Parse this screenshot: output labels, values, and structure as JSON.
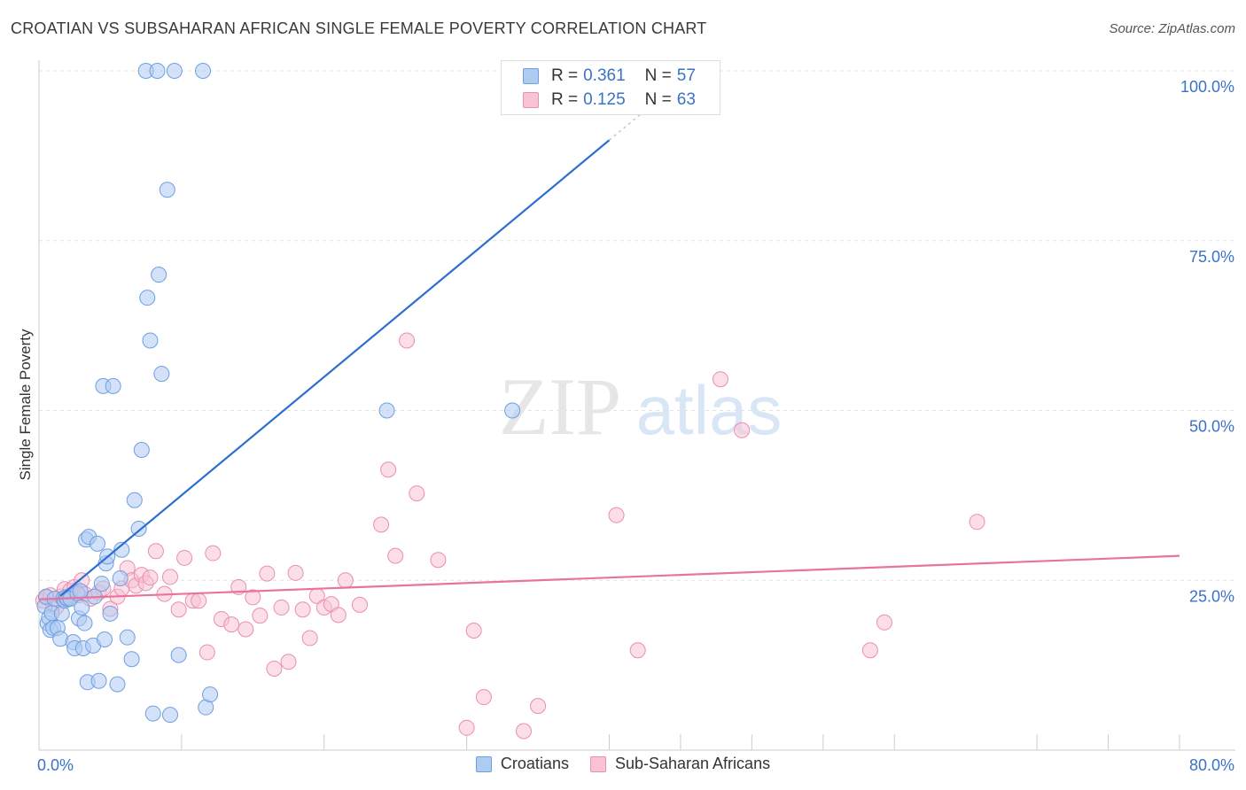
{
  "title": "CROATIAN VS SUBSAHARAN AFRICAN SINGLE FEMALE POVERTY CORRELATION CHART",
  "source": "Source: ZipAtlas.com",
  "watermark": {
    "zip": "ZIP",
    "atlas": "atlas"
  },
  "legend": {
    "r_label": "R =",
    "n_label": "N =",
    "rows": [
      {
        "r": "0.361",
        "n": "57"
      },
      {
        "r": "0.125",
        "n": "63"
      }
    ]
  },
  "chart_data": {
    "type": "scatter",
    "title": "CROATIAN VS SUBSAHARAN AFRICAN SINGLE FEMALE POVERTY CORRELATION CHART",
    "xlabel": "",
    "ylabel": "Single Female Poverty",
    "xlim": [
      0,
      80
    ],
    "ylim": [
      0,
      100
    ],
    "x_tick_labels": [
      "0.0%",
      "80.0%"
    ],
    "y_ticks": [
      25,
      50,
      75,
      100
    ],
    "y_tick_labels": [
      "25.0%",
      "50.0%",
      "75.0%",
      "100.0%"
    ],
    "grid": true,
    "legend_position": "top-center",
    "colors": {
      "croatians_fill": "#aecbf2",
      "croatians_stroke": "#6f9fe0",
      "croatians_line": "#2c6fd1",
      "africans_fill": "#f8c3d4",
      "africans_stroke": "#e98fae",
      "africans_line": "#e8739c",
      "tick_label": "#3a72c8",
      "grid": "#e3e3e3"
    },
    "series": [
      {
        "name": "Croatians",
        "r": 0.361,
        "n": 57,
        "trend": {
          "x": [
            1.5,
            40
          ],
          "y": [
            22.7,
            89.8
          ]
        },
        "trend_dashed": {
          "x": [
            40,
            44.5
          ],
          "y": [
            89.8,
            97.6
          ]
        },
        "points": [
          [
            0.4,
            21.2
          ],
          [
            0.5,
            22.6
          ],
          [
            0.6,
            18.7
          ],
          [
            0.7,
            19.5
          ],
          [
            0.8,
            17.7
          ],
          [
            0.9,
            20.2
          ],
          [
            1.0,
            18.0
          ],
          [
            1.1,
            22.3
          ],
          [
            1.3,
            18.0
          ],
          [
            1.5,
            16.4
          ],
          [
            1.6,
            20.1
          ],
          [
            1.7,
            22.3
          ],
          [
            1.8,
            22.0
          ],
          [
            1.9,
            22.5
          ],
          [
            2.0,
            22.3
          ],
          [
            2.2,
            22.3
          ],
          [
            2.4,
            15.9
          ],
          [
            2.5,
            15.0
          ],
          [
            2.7,
            23.1
          ],
          [
            2.8,
            19.4
          ],
          [
            2.9,
            23.4
          ],
          [
            3.0,
            21.0
          ],
          [
            3.1,
            15.0
          ],
          [
            3.2,
            18.7
          ],
          [
            3.3,
            31.0
          ],
          [
            3.4,
            10.0
          ],
          [
            3.5,
            31.4
          ],
          [
            3.8,
            15.4
          ],
          [
            3.9,
            22.6
          ],
          [
            4.1,
            30.4
          ],
          [
            4.2,
            10.2
          ],
          [
            4.4,
            24.5
          ],
          [
            4.5,
            53.6
          ],
          [
            4.6,
            16.3
          ],
          [
            4.7,
            27.5
          ],
          [
            4.8,
            28.5
          ],
          [
            5.0,
            20.1
          ],
          [
            5.2,
            53.6
          ],
          [
            5.5,
            9.7
          ],
          [
            5.7,
            25.3
          ],
          [
            5.8,
            29.5
          ],
          [
            6.2,
            16.6
          ],
          [
            6.5,
            13.4
          ],
          [
            6.7,
            36.8
          ],
          [
            7.0,
            32.6
          ],
          [
            7.2,
            44.2
          ],
          [
            7.5,
            100.0
          ],
          [
            7.6,
            66.6
          ],
          [
            7.8,
            60.3
          ],
          [
            8.0,
            5.4
          ],
          [
            8.3,
            100.0
          ],
          [
            8.4,
            70.0
          ],
          [
            8.6,
            55.4
          ],
          [
            9.0,
            82.5
          ],
          [
            9.2,
            5.2
          ],
          [
            9.5,
            100.0
          ],
          [
            9.8,
            14.0
          ],
          [
            11.5,
            100.0
          ],
          [
            11.7,
            6.3
          ],
          [
            12.0,
            8.2
          ],
          [
            24.4,
            50.0
          ],
          [
            33.2,
            50.0
          ]
        ]
      },
      {
        "name": "Sub-Saharan Africans",
        "r": 0.125,
        "n": 63,
        "trend": {
          "x": [
            0,
            80
          ],
          "y": [
            22.2,
            28.6
          ]
        },
        "points": [
          [
            0.3,
            22.0
          ],
          [
            0.5,
            22.5
          ],
          [
            0.8,
            22.8
          ],
          [
            1.0,
            21.5
          ],
          [
            1.2,
            21.0
          ],
          [
            1.5,
            22.6
          ],
          [
            1.8,
            23.7
          ],
          [
            2.0,
            22.2
          ],
          [
            2.2,
            23.5
          ],
          [
            2.5,
            24.0
          ],
          [
            2.8,
            22.8
          ],
          [
            3.0,
            25.0
          ],
          [
            3.2,
            23.0
          ],
          [
            3.6,
            22.3
          ],
          [
            4.2,
            23.2
          ],
          [
            4.5,
            23.8
          ],
          [
            5.0,
            20.8
          ],
          [
            5.5,
            22.6
          ],
          [
            5.8,
            23.8
          ],
          [
            6.2,
            26.8
          ],
          [
            6.5,
            25.0
          ],
          [
            6.8,
            24.2
          ],
          [
            7.2,
            25.8
          ],
          [
            7.5,
            24.6
          ],
          [
            7.8,
            25.4
          ],
          [
            8.2,
            29.3
          ],
          [
            8.8,
            23.0
          ],
          [
            9.2,
            25.5
          ],
          [
            9.8,
            20.7
          ],
          [
            10.2,
            28.3
          ],
          [
            10.8,
            22.0
          ],
          [
            11.2,
            22.0
          ],
          [
            11.8,
            14.4
          ],
          [
            12.2,
            29.0
          ],
          [
            12.8,
            19.3
          ],
          [
            13.5,
            18.5
          ],
          [
            14.0,
            24.0
          ],
          [
            14.5,
            17.8
          ],
          [
            15.0,
            22.5
          ],
          [
            15.5,
            19.8
          ],
          [
            16.0,
            26.0
          ],
          [
            16.5,
            12.0
          ],
          [
            17.0,
            21.0
          ],
          [
            17.5,
            13.0
          ],
          [
            18.0,
            26.1
          ],
          [
            18.5,
            20.7
          ],
          [
            19.0,
            16.5
          ],
          [
            19.5,
            22.7
          ],
          [
            20.0,
            21.0
          ],
          [
            20.5,
            21.5
          ],
          [
            21.0,
            19.9
          ],
          [
            21.5,
            25.0
          ],
          [
            22.5,
            21.4
          ],
          [
            24.0,
            33.2
          ],
          [
            24.5,
            41.3
          ],
          [
            25.0,
            28.6
          ],
          [
            25.8,
            60.3
          ],
          [
            26.5,
            37.8
          ],
          [
            28.0,
            28.0
          ],
          [
            30.0,
            3.3
          ],
          [
            30.5,
            17.6
          ],
          [
            31.2,
            7.8
          ],
          [
            34.0,
            2.8
          ],
          [
            35.0,
            6.5
          ],
          [
            40.5,
            34.6
          ],
          [
            42.0,
            14.7
          ],
          [
            47.8,
            54.6
          ],
          [
            49.3,
            47.1
          ],
          [
            58.3,
            14.7
          ],
          [
            59.3,
            18.8
          ],
          [
            65.8,
            33.6
          ]
        ]
      }
    ]
  },
  "bottom_legend": [
    {
      "label": "Croatians"
    },
    {
      "label": "Sub-Saharan Africans"
    }
  ]
}
